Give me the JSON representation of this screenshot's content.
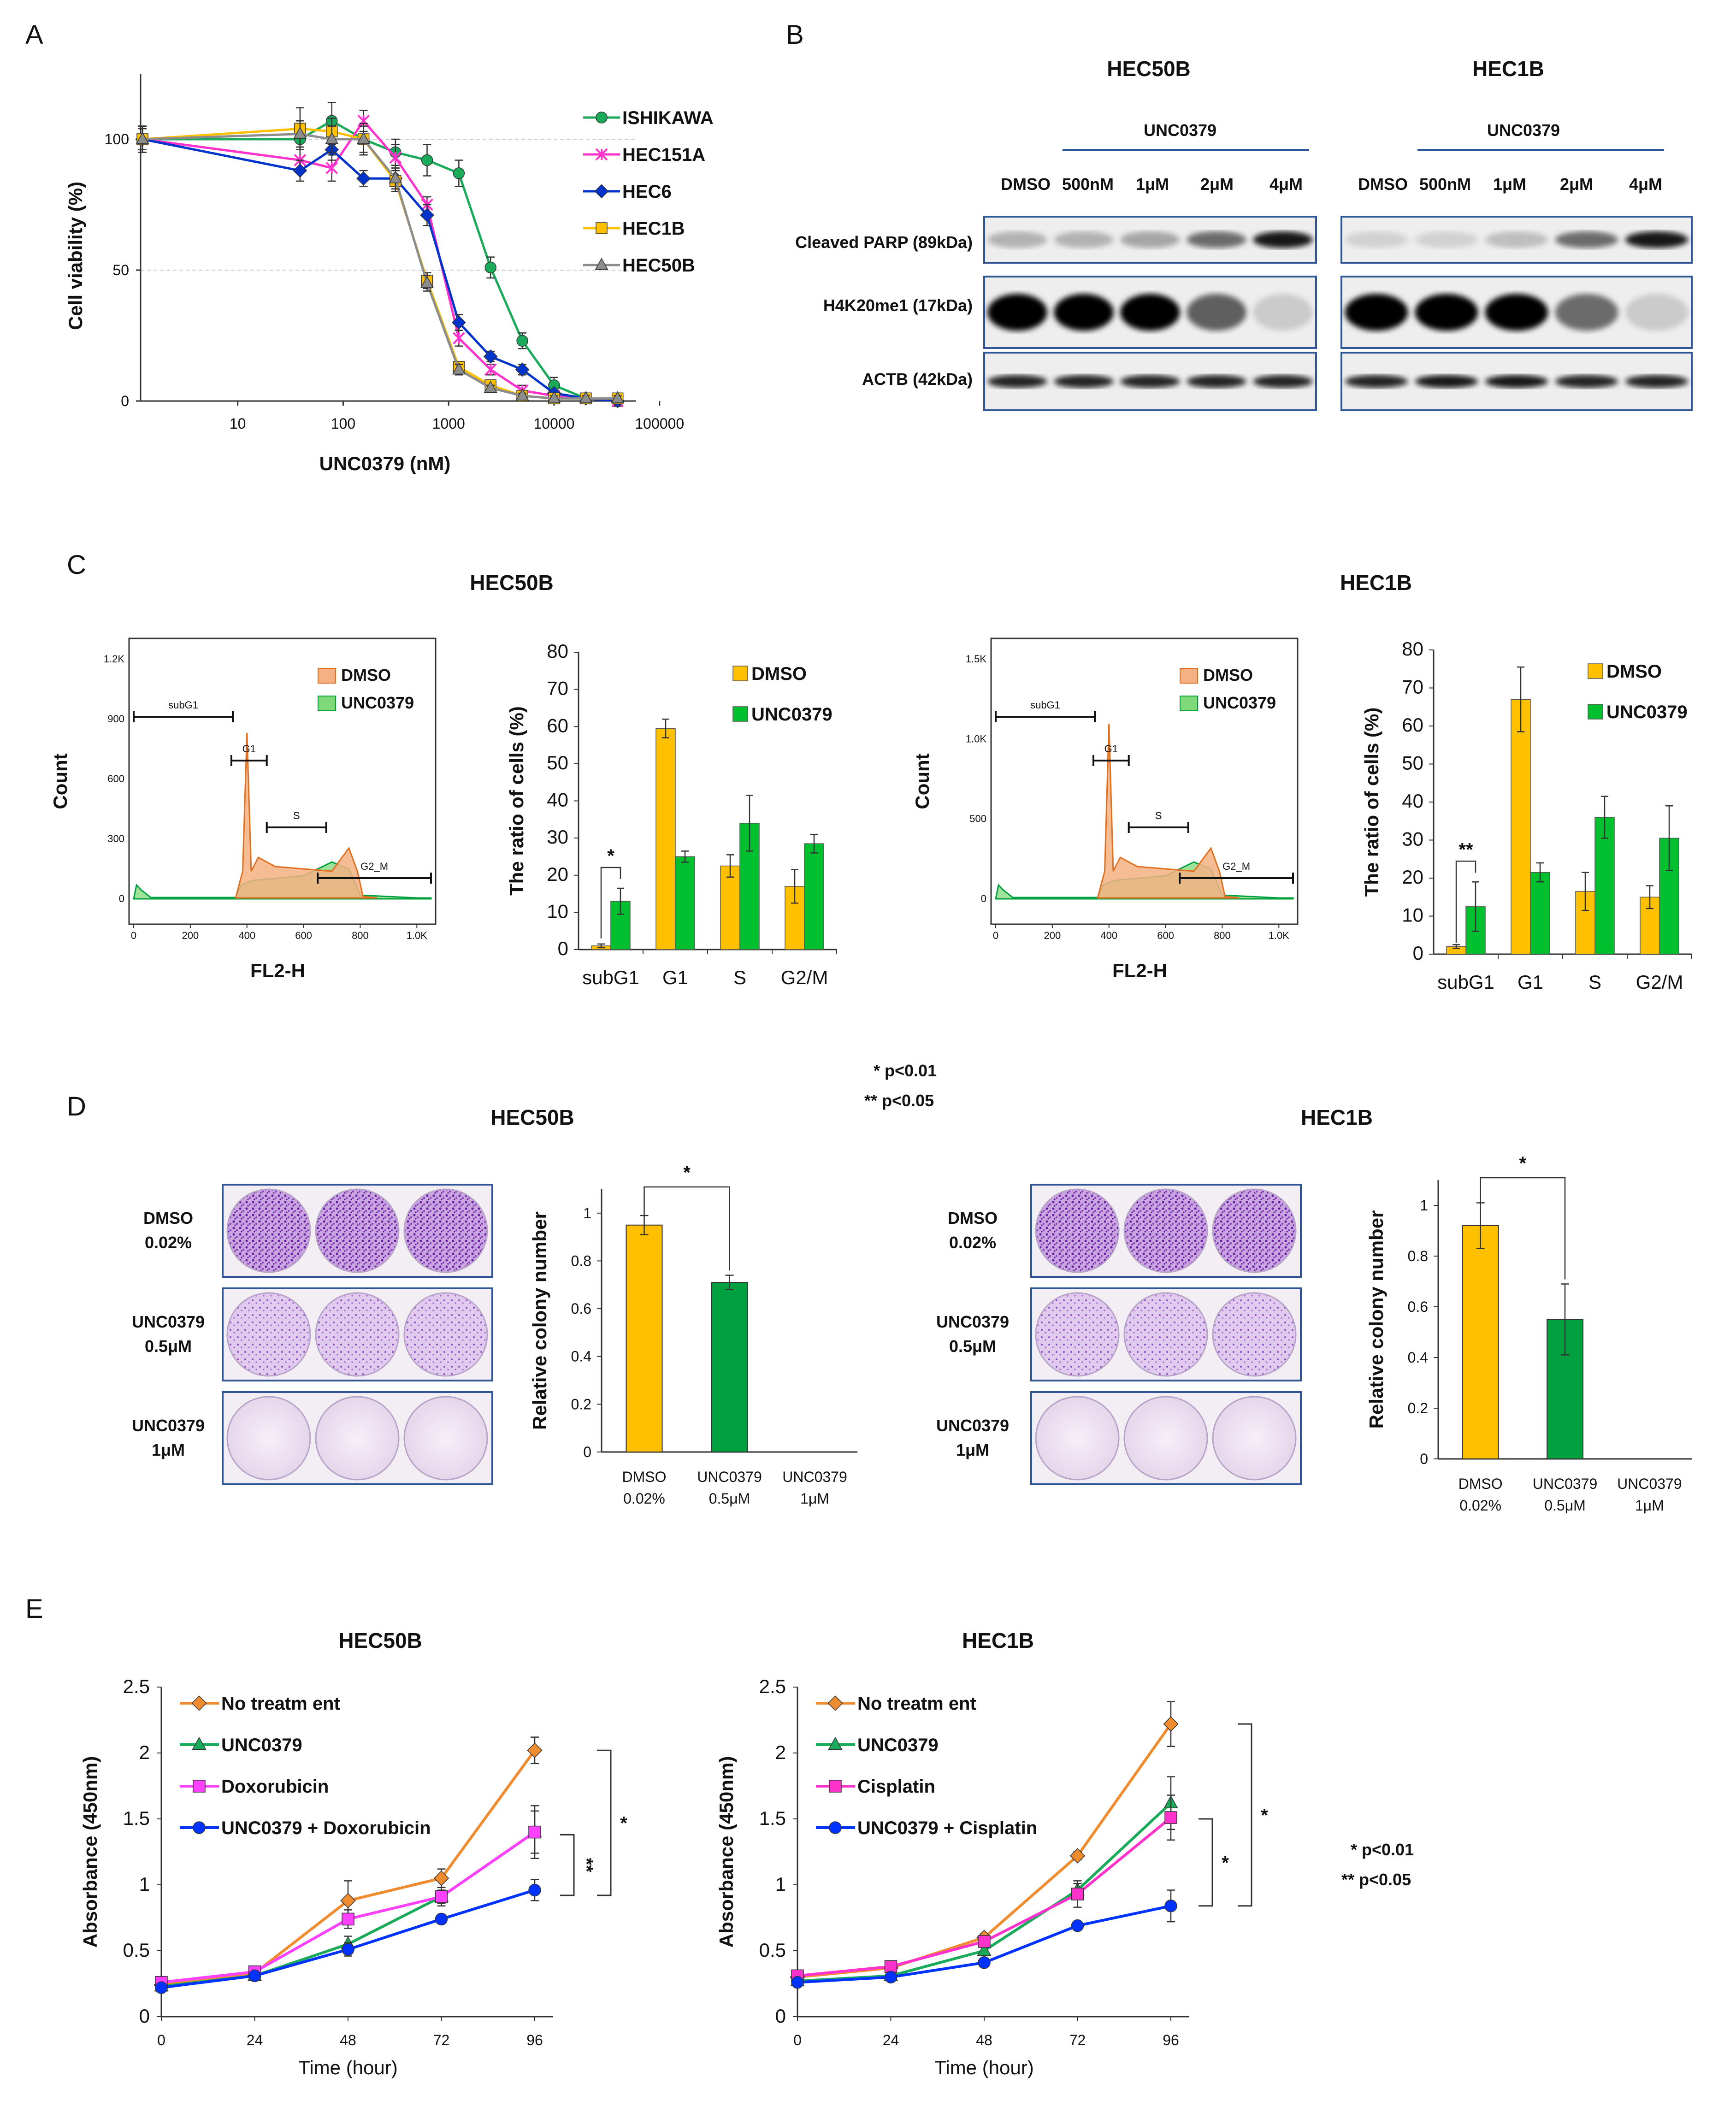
{
  "figure": {
    "panel_labels": [
      "A",
      "B",
      "C",
      "D",
      "E"
    ],
    "sig_note_1": "* p<0.01",
    "sig_note_2": "** p<0.05"
  },
  "colors": {
    "orange": "#F08C30",
    "gold": "#FFC000",
    "green": "#00B050",
    "darkgreen": "#00A040",
    "magenta": "#FF40FF",
    "pink": "#FF33CC",
    "blue": "#0033FF",
    "teal": "#1AAB5A",
    "grey": "#8C8C8C",
    "purple": "#9B30C8"
  },
  "panelA": {
    "ylabel": "Cell viability (%)",
    "xlabel": "UNC0379 (nM)",
    "x_ticks": [
      "10",
      "100",
      "1000",
      "10000",
      "100000"
    ],
    "y_ticks": [
      "0",
      "50",
      "100"
    ]
  },
  "panelB": {
    "groups": [
      {
        "cell_line": "HEC50B",
        "drug": "UNC0379",
        "lanes": [
          "DMSO",
          "500nM",
          "1μM",
          "2μM",
          "4μM"
        ]
      },
      {
        "cell_line": "HEC1B",
        "drug": "UNC0379",
        "lanes": [
          "DMSO",
          "500nM",
          "1μM",
          "2μM",
          "4μM"
        ]
      }
    ],
    "rows": [
      "Cleaved PARP (89kDa)",
      "H4K20me1 (17kDa)",
      "ACTB (42kDa)"
    ]
  },
  "panelC": {
    "flow": [
      {
        "title": "HEC50B",
        "ylabel": "Count",
        "xlabel": "FL2-H",
        "y_ticks": [
          "0",
          "300",
          "600",
          "900",
          "1.2K"
        ],
        "x_ticks": [
          "0",
          "200",
          "400",
          "600",
          "800",
          "1.0K"
        ],
        "gates": [
          "subG1",
          "G1",
          "S",
          "G2_M"
        ],
        "legend": [
          "DMSO",
          "UNC0379"
        ]
      },
      {
        "title": "HEC1B",
        "ylabel": "Count",
        "xlabel": "FL2-H",
        "y_ticks": [
          "0",
          "500",
          "1.0K",
          "1.5K"
        ],
        "x_ticks": [
          "0",
          "200",
          "400",
          "600",
          "800",
          "1.0K"
        ],
        "gates": [
          "subG1",
          "G1",
          "S",
          "G2_M"
        ],
        "legend": [
          "DMSO",
          "UNC0379"
        ]
      }
    ],
    "bar_ylabel": "The ratio of cells (%)",
    "bar_y_ticks": [
      "0",
      "10",
      "20",
      "30",
      "40",
      "50",
      "60",
      "70",
      "80"
    ],
    "sig": [
      "*",
      "**"
    ]
  },
  "panelD": {
    "titles": [
      "HEC50B",
      "HEC1B"
    ],
    "row_labels": [
      [
        "DMSO",
        "0.02%"
      ],
      [
        "UNC0379",
        "0.5μM"
      ],
      [
        "UNC0379",
        "1μM"
      ]
    ],
    "ylabel": "Relative colony number",
    "y_ticks": [
      "0",
      "0.2",
      "0.4",
      "0.6",
      "0.8",
      "1"
    ],
    "categories": [
      [
        "DMSO",
        "0.02%"
      ],
      [
        "UNC0379",
        "0.5μM"
      ],
      [
        "UNC0379",
        "1μM"
      ]
    ],
    "sig": "*"
  },
  "panelE": {
    "ylabel": "Absorbance (450nm)",
    "xlabel": "Time (hour)",
    "x_ticks": [
      "0",
      "24",
      "48",
      "72",
      "96"
    ],
    "y_ticks": [
      "0",
      "0.5",
      "1",
      "1.5",
      "2",
      "2.5"
    ],
    "sig": [
      "*",
      "**"
    ]
  },
  "chart_data": [
    {
      "id": "A",
      "type": "line",
      "x_scale": "log",
      "xlabel": "UNC0379 (nM)",
      "ylabel": "Cell viability (%)",
      "xlim": [
        1.2,
        60000
      ],
      "ylim": [
        0,
        125
      ],
      "series": [
        {
          "name": "ISHIKAWA",
          "color": "#1AAB5A",
          "marker": "circle",
          "x": [
            1.25,
            39,
            78,
            156,
            313,
            625,
            1250,
            2500,
            5000,
            10000,
            20000,
            40000
          ],
          "y": [
            100,
            100,
            107,
            100,
            95,
            92,
            87,
            51,
            23,
            6,
            1,
            0
          ],
          "err": [
            5,
            4,
            7,
            6,
            5,
            6,
            5,
            4,
            3,
            3,
            2,
            2
          ]
        },
        {
          "name": "HEC151A",
          "color": "#FF33CC",
          "marker": "x",
          "x": [
            1.25,
            39,
            78,
            156,
            313,
            625,
            1250,
            2500,
            5000,
            10000,
            20000,
            40000
          ],
          "y": [
            100,
            92,
            89,
            107,
            93,
            75,
            24,
            12,
            4,
            2,
            1,
            0
          ],
          "err": [
            5,
            5,
            5,
            4,
            5,
            3,
            3,
            2,
            2,
            1,
            1,
            1
          ]
        },
        {
          "name": "HEC6",
          "color": "#0033CC",
          "marker": "diamond",
          "x": [
            1.25,
            39,
            78,
            156,
            313,
            625,
            1250,
            2500,
            5000,
            10000,
            20000,
            40000
          ],
          "y": [
            100,
            88,
            96,
            85,
            85,
            71,
            30,
            17,
            12,
            3,
            1,
            0
          ],
          "err": [
            5,
            4,
            4,
            3,
            4,
            4,
            3,
            2,
            2,
            1,
            1,
            1
          ]
        },
        {
          "name": "HEC1B",
          "color": "#FFC000",
          "marker": "square",
          "x": [
            1.25,
            39,
            78,
            156,
            313,
            625,
            1250,
            2500,
            5000,
            10000,
            20000,
            40000
          ],
          "y": [
            100,
            104,
            103,
            100,
            84,
            46,
            13,
            6,
            2,
            1,
            1,
            1
          ],
          "err": [
            5,
            8,
            5,
            6,
            4,
            3,
            2,
            2,
            1,
            1,
            1,
            1
          ]
        },
        {
          "name": "HEC50B",
          "color": "#8C8C8C",
          "marker": "triangle",
          "x": [
            1.25,
            39,
            78,
            156,
            313,
            625,
            1250,
            2500,
            5000,
            10000,
            20000,
            40000
          ],
          "y": [
            100,
            102,
            100,
            100,
            85,
            45,
            12,
            5,
            2,
            1,
            1,
            1
          ],
          "err": [
            4,
            5,
            5,
            5,
            4,
            3,
            2,
            1,
            1,
            1,
            1,
            1
          ]
        }
      ]
    },
    {
      "id": "C-HEC50B",
      "type": "bar",
      "title": "HEC50B",
      "categories": [
        "subG1",
        "G1",
        "S",
        "G2/M"
      ],
      "ylabel": "The ratio of cells (%)",
      "ylim": [
        0,
        80
      ],
      "series": [
        {
          "name": "DMSO",
          "color": "#FFC000",
          "values": [
            1,
            59.5,
            22.5,
            17
          ],
          "err": [
            0.5,
            2.5,
            3,
            4.5
          ]
        },
        {
          "name": "UNC0379",
          "color": "#00C030",
          "values": [
            13,
            25,
            34,
            28.5
          ],
          "err": [
            3.5,
            1.5,
            7.5,
            2.5
          ]
        }
      ]
    },
    {
      "id": "C-HEC1B",
      "type": "bar",
      "title": "HEC1B",
      "categories": [
        "subG1",
        "G1",
        "S",
        "G2/M"
      ],
      "ylabel": "The ratio of cells (%)",
      "ylim": [
        0,
        80
      ],
      "series": [
        {
          "name": "DMSO",
          "color": "#FFC000",
          "values": [
            2,
            67,
            16.5,
            15
          ],
          "err": [
            0.5,
            8.5,
            5,
            3
          ]
        },
        {
          "name": "UNC0379",
          "color": "#00C030",
          "values": [
            12.5,
            21.5,
            36,
            30.5
          ],
          "err": [
            6.5,
            2.5,
            5.5,
            8.5
          ]
        }
      ]
    },
    {
      "id": "D-HEC50B",
      "type": "bar",
      "title": "HEC50B",
      "categories": [
        "DMSO 0.02%",
        "UNC0379 0.5μM",
        "UNC0379 1μM"
      ],
      "ylabel": "Relative colony number",
      "ylim": [
        0,
        1.1
      ],
      "values": [
        0.95,
        0.71,
        0
      ],
      "err": [
        0.04,
        0.03,
        0
      ],
      "colors": [
        "#FFC000",
        "#00A040",
        "#00A040"
      ]
    },
    {
      "id": "D-HEC1B",
      "type": "bar",
      "title": "HEC1B",
      "categories": [
        "DMSO 0.02%",
        "UNC0379 0.5μM",
        "UNC0379 1μM"
      ],
      "ylabel": "Relative colony number",
      "ylim": [
        0,
        1.1
      ],
      "values": [
        0.92,
        0.55,
        0
      ],
      "err": [
        0.09,
        0.14,
        0
      ],
      "colors": [
        "#FFC000",
        "#00A040",
        "#00A040"
      ]
    },
    {
      "id": "E-HEC50B",
      "type": "line",
      "title": "HEC50B",
      "xlabel": "Time (hour)",
      "ylabel": "Absorbance (450nm)",
      "xlim": [
        0,
        96
      ],
      "ylim": [
        0,
        2.5
      ],
      "x": [
        0,
        24,
        48,
        72,
        96
      ],
      "series": [
        {
          "name": "No treatm ent",
          "color": "#F08C30",
          "marker": "diamond",
          "values": [
            0.24,
            0.33,
            0.88,
            1.05,
            2.02
          ],
          "err": [
            0.02,
            0.03,
            0.15,
            0.07,
            0.1
          ]
        },
        {
          "name": "UNC0379",
          "color": "#1AAB5A",
          "marker": "triangle",
          "values": [
            0.23,
            0.31,
            0.55,
            0.91,
            1.4
          ],
          "err": [
            0.02,
            0.03,
            0.06,
            0.05,
            0.2
          ]
        },
        {
          "name": "Doxorubicin",
          "color": "#FF40FF",
          "marker": "square",
          "values": [
            0.26,
            0.34,
            0.74,
            0.91,
            1.4
          ],
          "err": [
            0.02,
            0.03,
            0.07,
            0.07,
            0.16
          ]
        },
        {
          "name": "UNC0379 + Doxorubicin",
          "color": "#0033FF",
          "marker": "circle",
          "values": [
            0.22,
            0.31,
            0.51,
            0.74,
            0.96
          ],
          "err": [
            0.02,
            0.03,
            0.05,
            0.03,
            0.08
          ]
        }
      ]
    },
    {
      "id": "E-HEC1B",
      "type": "line",
      "title": "HEC1B",
      "xlabel": "Time (hour)",
      "ylabel": "Absorbance (450nm)",
      "xlim": [
        0,
        96
      ],
      "ylim": [
        0,
        2.5
      ],
      "x": [
        0,
        24,
        48,
        72,
        96
      ],
      "series": [
        {
          "name": "No treatm ent",
          "color": "#F08C30",
          "marker": "diamond",
          "values": [
            0.3,
            0.37,
            0.6,
            1.22,
            2.22
          ],
          "err": [
            0.02,
            0.03,
            0.03,
            0.03,
            0.17
          ]
        },
        {
          "name": "UNC0379",
          "color": "#1AAB5A",
          "marker": "triangle",
          "values": [
            0.27,
            0.31,
            0.5,
            0.96,
            1.62
          ],
          "err": [
            0.02,
            0.03,
            0.03,
            0.05,
            0.2
          ]
        },
        {
          "name": "Cisplatin",
          "color": "#FF33CC",
          "marker": "square",
          "values": [
            0.31,
            0.38,
            0.57,
            0.93,
            1.51
          ],
          "err": [
            0.02,
            0.03,
            0.03,
            0.1,
            0.17
          ]
        },
        {
          "name": "UNC0379 + Cisplatin",
          "color": "#0033FF",
          "marker": "circle",
          "values": [
            0.26,
            0.3,
            0.41,
            0.69,
            0.84
          ],
          "err": [
            0.02,
            0.03,
            0.03,
            0.03,
            0.12
          ]
        }
      ]
    }
  ]
}
